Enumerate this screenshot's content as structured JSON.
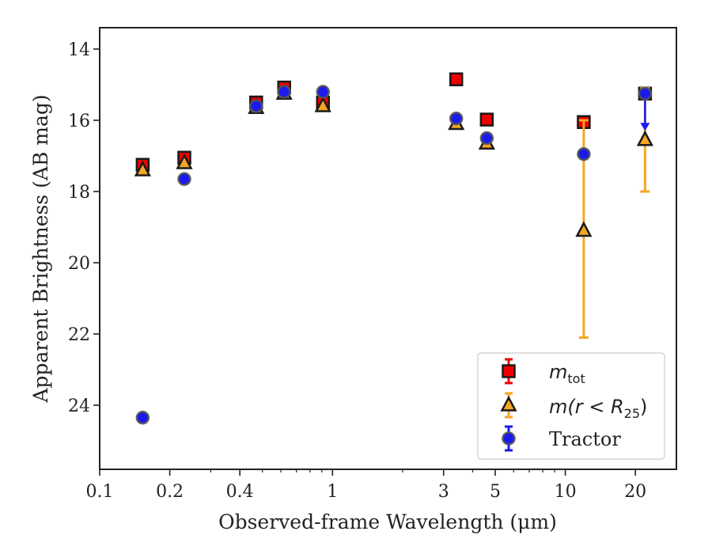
{
  "chart_data": {
    "type": "scatter",
    "xlabel": "Observed-frame Wavelength (μm)",
    "ylabel": "Apparent Brightness (AB mag)",
    "xscale": "log",
    "xlim": [
      0.1,
      30
    ],
    "ylim": [
      25.8,
      13.4
    ],
    "y_inverted": true,
    "x_ticks": [
      0.1,
      0.2,
      0.4,
      1,
      3,
      5,
      10,
      20
    ],
    "x_tick_labels": [
      "0.1",
      "0.2",
      "0.4",
      "1",
      "3",
      "5",
      "10",
      "20"
    ],
    "y_ticks": [
      14,
      16,
      18,
      20,
      22,
      24
    ],
    "y_tick_labels": [
      "14",
      "16",
      "18",
      "20",
      "22",
      "24"
    ],
    "grid": false,
    "legend_position": "bottom-right",
    "legend": {
      "mtot_base": "m",
      "mtot_sub": "tot",
      "mr_prefix": "m(r < R",
      "mr_sub": "25",
      "mr_suffix": ")",
      "tractor": "Tractor"
    },
    "series": [
      {
        "key": "mtot",
        "marker": "square",
        "color": "#ee0000",
        "points": [
          {
            "x": 0.153,
            "y": 17.25
          },
          {
            "x": 0.231,
            "y": 17.05
          },
          {
            "x": 0.47,
            "y": 15.5
          },
          {
            "x": 0.62,
            "y": 15.08
          },
          {
            "x": 0.91,
            "y": 15.5
          },
          {
            "x": 3.4,
            "y": 14.85
          },
          {
            "x": 4.6,
            "y": 15.98
          },
          {
            "x": 12.0,
            "y": 16.05
          },
          {
            "x": 22.0,
            "y": 15.25
          }
        ]
      },
      {
        "key": "mr25",
        "marker": "triangle",
        "color": "#f5a623",
        "points": [
          {
            "x": 0.153,
            "y": 17.4
          },
          {
            "x": 0.231,
            "y": 17.2
          },
          {
            "x": 0.47,
            "y": 15.65
          },
          {
            "x": 0.62,
            "y": 15.25
          },
          {
            "x": 0.91,
            "y": 15.6
          },
          {
            "x": 3.4,
            "y": 16.1
          },
          {
            "x": 4.6,
            "y": 16.65
          },
          {
            "x": 12.0,
            "y": 19.1,
            "err_lo": 22.1,
            "err_hi": 16.0
          },
          {
            "x": 22.0,
            "y": 16.55,
            "err_lo": 18.0,
            "err_hi": 15.1
          }
        ]
      },
      {
        "key": "tractor",
        "marker": "circle",
        "color": "#1a1aee",
        "points": [
          {
            "x": 0.153,
            "y": 24.35
          },
          {
            "x": 0.231,
            "y": 17.65
          },
          {
            "x": 0.47,
            "y": 15.6
          },
          {
            "x": 0.62,
            "y": 15.2
          },
          {
            "x": 0.91,
            "y": 15.2
          },
          {
            "x": 3.4,
            "y": 15.95
          },
          {
            "x": 4.6,
            "y": 16.5
          },
          {
            "x": 12.0,
            "y": 16.95
          },
          {
            "x": 22.0,
            "y": 15.25,
            "upper_limit_to": 16.25
          }
        ]
      }
    ]
  }
}
